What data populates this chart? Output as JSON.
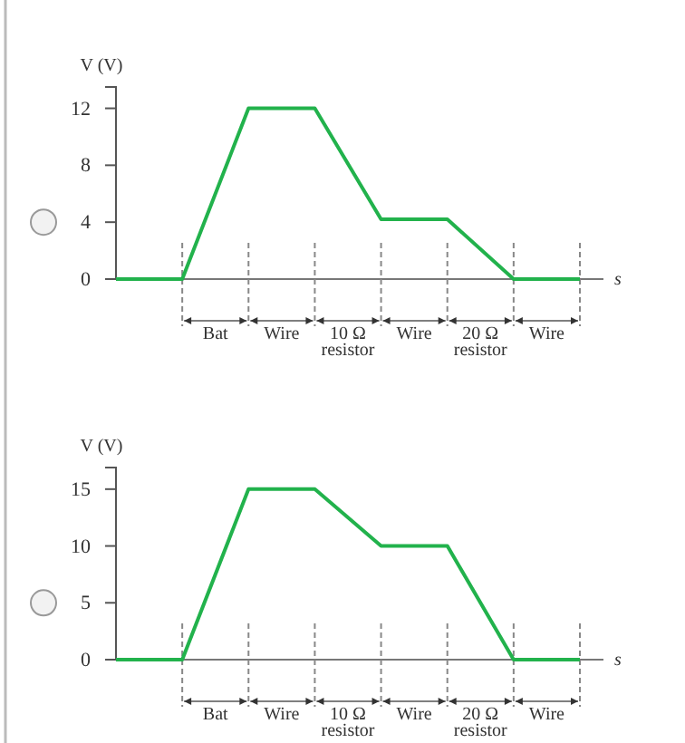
{
  "chart_data": [
    {
      "type": "line",
      "ylabel": "V (V)",
      "xlabel": "s",
      "ylim": [
        0,
        13.5
      ],
      "yticks": [
        0,
        4,
        8,
        12
      ],
      "categories": [
        null,
        null,
        null,
        null,
        null,
        null,
        null,
        null
      ],
      "annotations": [
        "Bat",
        "Wire",
        "10 Ω resistor",
        "Wire",
        "20 Ω resistor",
        "Wire"
      ],
      "grid": false,
      "marker": "none",
      "line_style": "solid",
      "series": [
        {
          "color": "#22b24c",
          "values": [
            0,
            0,
            12,
            12,
            4.2,
            4.2,
            0,
            0
          ]
        }
      ]
    },
    {
      "type": "line",
      "ylabel": "V (V)",
      "xlabel": "s",
      "ylim": [
        0,
        16.9
      ],
      "yticks": [
        0,
        5,
        10,
        15
      ],
      "categories": [
        null,
        null,
        null,
        null,
        null,
        null,
        null,
        null
      ],
      "annotations": [
        "Bat",
        "Wire",
        "10 Ω resistor",
        "Wire",
        "20 Ω resistor",
        "Wire"
      ],
      "grid": false,
      "marker": "none",
      "line_style": "solid",
      "series": [
        {
          "color": "#22b24c",
          "values": [
            0,
            0,
            15,
            15,
            10,
            10,
            0,
            0
          ]
        }
      ]
    }
  ]
}
